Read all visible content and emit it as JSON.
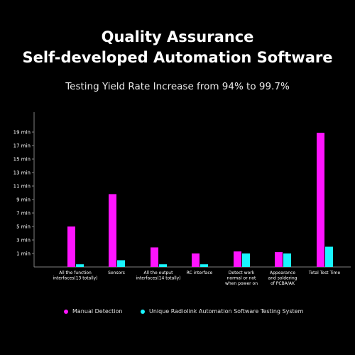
{
  "header": {
    "title_line1": "Quality Assurance",
    "title_line2": "Self-developed Automation Software",
    "subtitle": "Testing Yield Rate Increase from 94% to 99.7%"
  },
  "colors": {
    "manual": "#ff14ff",
    "automation": "#19f5ff",
    "axis": "#808080",
    "text": "#ffffff"
  },
  "chart_data": {
    "type": "bar",
    "y_tick_labels": [
      "1 min",
      "3 min",
      "5 min",
      "7 min",
      "9 min",
      "11 min",
      "13 min",
      "15 min",
      "17 min",
      "19 min"
    ],
    "ylim": [
      -1,
      20
    ],
    "grid": false,
    "legend_position": "bottom",
    "categories": [
      [
        "All the function",
        "interfaces(13 totally)"
      ],
      [
        "Sensors"
      ],
      [
        "All the output",
        "interfaces(14 totally)"
      ],
      [
        "RC interface"
      ],
      [
        "Detect work",
        "normal or not",
        "when power on"
      ],
      [
        "Appearance",
        "and soldering",
        "of PCBA/AK"
      ],
      [
        "Total Test Time"
      ]
    ],
    "series": [
      {
        "name": "Manual Detection",
        "values": [
          5,
          9.8,
          1.9,
          1,
          1.3,
          1.2,
          18.9
        ]
      },
      {
        "name": "Unique Radiolink Automation Software Testing System",
        "values": [
          -0.6,
          0,
          -0.6,
          -0.6,
          1,
          1,
          2
        ]
      }
    ]
  }
}
